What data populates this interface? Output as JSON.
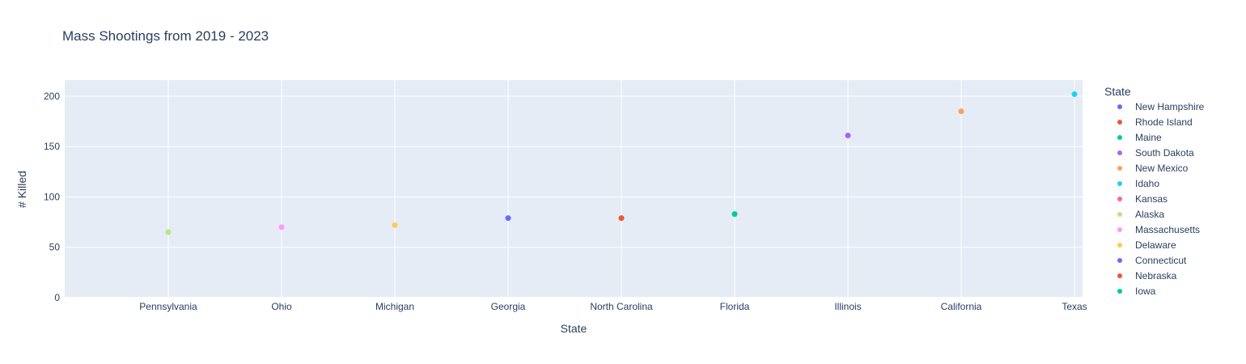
{
  "chart_data": {
    "type": "scatter",
    "title": "Mass Shootings from 2019 - 2023",
    "xlabel": "State",
    "ylabel": "# Killed",
    "categories": [
      "Pennsylvania",
      "Ohio",
      "Michigan",
      "Georgia",
      "North Carolina",
      "Florida",
      "Illinois",
      "California",
      "Texas"
    ],
    "yticks": [
      0,
      50,
      100,
      150,
      200
    ],
    "ylim": [
      0,
      216
    ],
    "grid": true,
    "plot_background": "#e5ecf6",
    "points": [
      {
        "x": "Pennsylvania",
        "y": 65,
        "color": "#b6e880"
      },
      {
        "x": "Ohio",
        "y": 70,
        "color": "#ff97ff"
      },
      {
        "x": "Michigan",
        "y": 72,
        "color": "#fecb52"
      },
      {
        "x": "Georgia",
        "y": 79,
        "color": "#636efa"
      },
      {
        "x": "North Carolina",
        "y": 79,
        "color": "#ef553b"
      },
      {
        "x": "Florida",
        "y": 83,
        "color": "#00cc96"
      },
      {
        "x": "Illinois",
        "y": 161,
        "color": "#ab63fa"
      },
      {
        "x": "California",
        "y": 185,
        "color": "#ffa15a"
      },
      {
        "x": "Texas",
        "y": 202,
        "color": "#19d3f3"
      }
    ],
    "legend": {
      "title": "State",
      "placement": "right",
      "entries": [
        {
          "name": "New Hampshire",
          "color": "#636efa"
        },
        {
          "name": "Rhode Island",
          "color": "#ef553b"
        },
        {
          "name": "Maine",
          "color": "#00cc96"
        },
        {
          "name": "South Dakota",
          "color": "#ab63fa"
        },
        {
          "name": "New Mexico",
          "color": "#ffa15a"
        },
        {
          "name": "Idaho",
          "color": "#19d3f3"
        },
        {
          "name": "Kansas",
          "color": "#ff6692"
        },
        {
          "name": "Alaska",
          "color": "#b6e880"
        },
        {
          "name": "Massachusetts",
          "color": "#ff97ff"
        },
        {
          "name": "Delaware",
          "color": "#fecb52"
        },
        {
          "name": "Connecticut",
          "color": "#636efa"
        },
        {
          "name": "Nebraska",
          "color": "#ef553b"
        },
        {
          "name": "Iowa",
          "color": "#00cc96"
        }
      ]
    }
  }
}
